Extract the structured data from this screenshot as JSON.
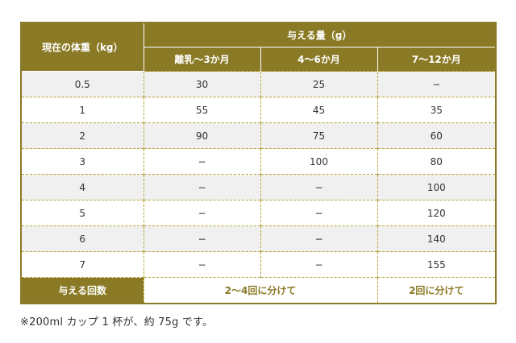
{
  "table": {
    "corner_header": "現在の体重（kg）",
    "group_header": "与える量（g）",
    "col_headers": [
      "離乳〜3か月",
      "4〜6か月",
      "7〜12か月"
    ],
    "rows": [
      [
        "0.5",
        "30",
        "25",
        "−"
      ],
      [
        "1",
        "55",
        "45",
        "35"
      ],
      [
        "2",
        "90",
        "75",
        "60"
      ],
      [
        "3",
        "−",
        "100",
        "80"
      ],
      [
        "4",
        "−",
        "−",
        "100"
      ],
      [
        "5",
        "−",
        "−",
        "120"
      ],
      [
        "6",
        "−",
        "−",
        "140"
      ],
      [
        "7",
        "−",
        "−",
        "155"
      ]
    ],
    "footer": {
      "label": "与える回数",
      "value_young": "2〜4回に分けて",
      "value_old": "2回に分けて"
    }
  },
  "note": "※200ml カップ 1 杯が、約 75g です。",
  "colors": {
    "header_bg": "#8a7a26",
    "stripe": "#f0f0f0",
    "dash": "#b5a33a"
  }
}
